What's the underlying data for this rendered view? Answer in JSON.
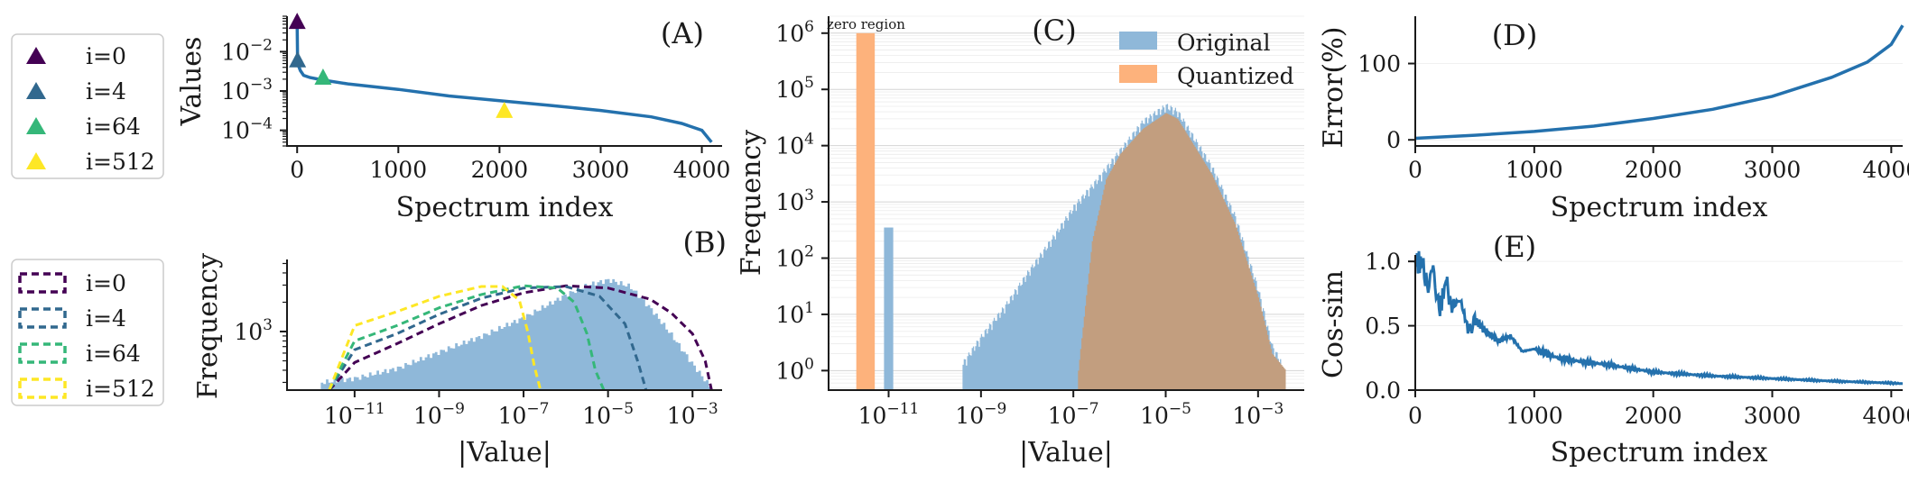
{
  "colors": {
    "line": "#2471ad",
    "hist_original": "#8fb8d9",
    "hist_quantized": "#fdb27c",
    "overlap": "#c29e7f",
    "i0": "#440154",
    "i4": "#31688e",
    "i64": "#35b779",
    "i512": "#fde725"
  },
  "legend_markers": {
    "icon": "triangle-marker-icon",
    "items": [
      {
        "label": "i=0",
        "color": "#440154"
      },
      {
        "label": "i=4",
        "color": "#31688e"
      },
      {
        "label": "i=64",
        "color": "#35b779"
      },
      {
        "label": "i=512",
        "color": "#fde725"
      }
    ]
  },
  "legend_hist": {
    "icon": "dashed-box-icon",
    "items": [
      {
        "label": "i=0",
        "color": "#440154"
      },
      {
        "label": "i=4",
        "color": "#31688e"
      },
      {
        "label": "i=64",
        "color": "#35b779"
      },
      {
        "label": "i=512",
        "color": "#fde725"
      }
    ]
  },
  "chart_data": [
    {
      "panel": "(A)",
      "type": "line",
      "xlabel": "Spectrum index",
      "ylabel": "Values",
      "yscale": "log",
      "xlim": [
        -100,
        4200
      ],
      "ylim": [
        4e-05,
        0.08
      ],
      "xticks": [
        "0",
        "1000",
        "2000",
        "3000",
        "4000"
      ],
      "xtick_values": [
        0,
        1000,
        2000,
        3000,
        4000
      ],
      "yticks": [
        "10^-4",
        "10^-3",
        "10^-2"
      ],
      "ytick_values": [
        0.0001,
        0.001,
        0.01
      ],
      "series": [
        {
          "name": "spectrum",
          "x": [
            0,
            4,
            16,
            32,
            64,
            128,
            256,
            512,
            1000,
            1500,
            2048,
            2500,
            3000,
            3500,
            3800,
            4000,
            4096
          ],
          "y": [
            0.055,
            0.006,
            0.0042,
            0.0033,
            0.0025,
            0.0022,
            0.0019,
            0.0015,
            0.0011,
            0.00075,
            0.00055,
            0.00043,
            0.00032,
            0.00022,
            0.00015,
            0.0001,
            5e-05
          ]
        }
      ],
      "markers": [
        {
          "label": "i=0",
          "x": 0,
          "y": 0.055
        },
        {
          "label": "i=4",
          "x": 4,
          "y": 0.0058
        },
        {
          "label": "i=64",
          "x": 256,
          "y": 0.0021
        },
        {
          "label": "i=512",
          "x": 2048,
          "y": 0.0003
        }
      ]
    },
    {
      "panel": "(B)",
      "type": "histogram",
      "xlabel": "|Value|",
      "ylabel": "Frequency",
      "xscale": "log",
      "yscale": "log",
      "xlim_log10": [
        -12.6,
        -2.3
      ],
      "ylim": [
        250,
        5500
      ],
      "xticks": [
        "10^-11",
        "10^-9",
        "10^-7",
        "10^-5",
        "10^-3"
      ],
      "xtick_values_log10": [
        -11,
        -9,
        -7,
        -5,
        -3
      ],
      "yticks": [
        "10^3"
      ],
      "ytick_values": [
        1000
      ],
      "filled": {
        "name": "all",
        "x_log10": [
          -11.8,
          -11.0,
          -10.0,
          -9.0,
          -8.0,
          -7.0,
          -6.0,
          -5.5,
          -5.0,
          -4.5,
          -4.0,
          -3.5,
          -3.0,
          -2.6
        ],
        "y": [
          300,
          330,
          420,
          620,
          900,
          1400,
          2400,
          3000,
          3400,
          2900,
          1700,
          900,
          450,
          270
        ]
      },
      "step_series": [
        {
          "name": "i=0",
          "x_log10": [
            -11.6,
            -11.0,
            -10.0,
            -9.0,
            -8.0,
            -7.0,
            -6.0,
            -5.0,
            -4.0,
            -3.5,
            -3.0,
            -2.7,
            -2.55
          ],
          "y": [
            250,
            480,
            750,
            1200,
            1850,
            2500,
            2950,
            2800,
            2150,
            1550,
            950,
            500,
            250
          ]
        },
        {
          "name": "i=4",
          "x_log10": [
            -11.6,
            -11.0,
            -10.0,
            -9.0,
            -8.0,
            -7.0,
            -6.0,
            -5.2,
            -4.6,
            -4.3,
            -4.1
          ],
          "y": [
            250,
            650,
            950,
            1500,
            2200,
            2800,
            2900,
            2300,
            1200,
            500,
            250
          ]
        },
        {
          "name": "i=64",
          "x_log10": [
            -11.6,
            -11.0,
            -10.0,
            -9.0,
            -8.0,
            -7.0,
            -6.2,
            -5.8,
            -5.5,
            -5.3,
            -5.1
          ],
          "y": [
            250,
            800,
            1150,
            1750,
            2400,
            2950,
            2800,
            2000,
            950,
            400,
            250
          ]
        },
        {
          "name": "i=512",
          "x_log10": [
            -11.6,
            -11.0,
            -10.0,
            -9.0,
            -8.0,
            -7.5,
            -7.1,
            -6.9,
            -6.75,
            -6.6
          ],
          "y": [
            250,
            1150,
            1600,
            2300,
            2900,
            2900,
            2100,
            1000,
            450,
            250
          ]
        }
      ]
    },
    {
      "panel": "(C)",
      "type": "histogram",
      "xlabel": "|Value|",
      "ylabel": "Frequency",
      "xscale": "log",
      "yscale": "log",
      "xlim_log10": [
        -12.3,
        -2.0
      ],
      "ylim": [
        0.45,
        2000000
      ],
      "xticks": [
        "10^-11",
        "10^-9",
        "10^-7",
        "10^-5",
        "10^-3"
      ],
      "xtick_values_log10": [
        -11,
        -9,
        -7,
        -5,
        -3
      ],
      "yticks": [
        "10^0",
        "10^1",
        "10^2",
        "10^3",
        "10^4",
        "10^5",
        "10^6"
      ],
      "ytick_values": [
        1,
        10,
        100,
        1000,
        10000,
        100000,
        1000000
      ],
      "annotation": "zero region",
      "legend": [
        "Original",
        "Quantized"
      ],
      "series": [
        {
          "name": "Original",
          "x_log10": [
            -11.1,
            -10.9,
            -9.4,
            -9.0,
            -8.5,
            -8.0,
            -7.5,
            -7.0,
            -6.5,
            -6.0,
            -5.5,
            -5.0,
            -4.75,
            -4.5,
            -4.0,
            -3.5,
            -3.0,
            -2.7,
            -2.5
          ],
          "y": [
            350,
            350,
            1,
            3,
            10,
            40,
            150,
            600,
            1800,
            6000,
            20000,
            38000,
            30000,
            14000,
            3000,
            400,
            20,
            2,
            1
          ]
        },
        {
          "name": "Quantized",
          "x_log10": [
            -11.7,
            -11.3,
            -6.9,
            -6.6,
            -6.3,
            -6.0,
            -5.5,
            -5.0,
            -4.75,
            -4.5,
            -4.0,
            -3.5,
            -3.0,
            -2.7,
            -2.4
          ],
          "y": [
            1000000,
            1000000,
            1,
            200,
            2500,
            7000,
            20000,
            38000,
            30000,
            14000,
            3000,
            400,
            20,
            2,
            1
          ]
        }
      ]
    },
    {
      "panel": "(D)",
      "type": "line",
      "xlabel": "Spectrum index",
      "ylabel": "Error(%)",
      "xlim": [
        0,
        4096
      ],
      "ylim": [
        -8,
        162
      ],
      "xticks": [
        "0",
        "1000",
        "2000",
        "3000",
        "4000"
      ],
      "xtick_values": [
        0,
        1000,
        2000,
        3000,
        4000
      ],
      "yticks": [
        "0",
        "100"
      ],
      "ytick_values": [
        0,
        100
      ],
      "series": [
        {
          "name": "error",
          "x": [
            0,
            500,
            1000,
            1500,
            2000,
            2500,
            3000,
            3500,
            3800,
            4000,
            4096
          ],
          "y": [
            2,
            6,
            11,
            18,
            28,
            40,
            57,
            82,
            102,
            125,
            150
          ]
        }
      ]
    },
    {
      "panel": "(E)",
      "type": "line",
      "xlabel": "Spectrum index",
      "ylabel": "Cos-sim",
      "xlim": [
        0,
        4096
      ],
      "ylim": [
        0,
        1.05
      ],
      "xticks": [
        "0",
        "1000",
        "2000",
        "3000",
        "4000"
      ],
      "xtick_values": [
        0,
        1000,
        2000,
        3000,
        4000
      ],
      "yticks": [
        "0.0",
        "0.5",
        "1.0"
      ],
      "ytick_values": [
        0,
        0.5,
        1.0
      ],
      "series": [
        {
          "name": "cos-sim",
          "x": [
            0,
            60,
            100,
            150,
            200,
            260,
            300,
            380,
            450,
            500,
            600,
            700,
            800,
            900,
            1000,
            1200,
            1400,
            1600,
            1800,
            2000,
            2500,
            3000,
            3500,
            4000,
            4096
          ],
          "y": [
            1.0,
            0.98,
            0.8,
            0.95,
            0.6,
            0.85,
            0.65,
            0.7,
            0.45,
            0.55,
            0.45,
            0.38,
            0.42,
            0.3,
            0.32,
            0.25,
            0.22,
            0.2,
            0.17,
            0.14,
            0.11,
            0.09,
            0.07,
            0.055,
            0.05
          ]
        }
      ]
    }
  ]
}
